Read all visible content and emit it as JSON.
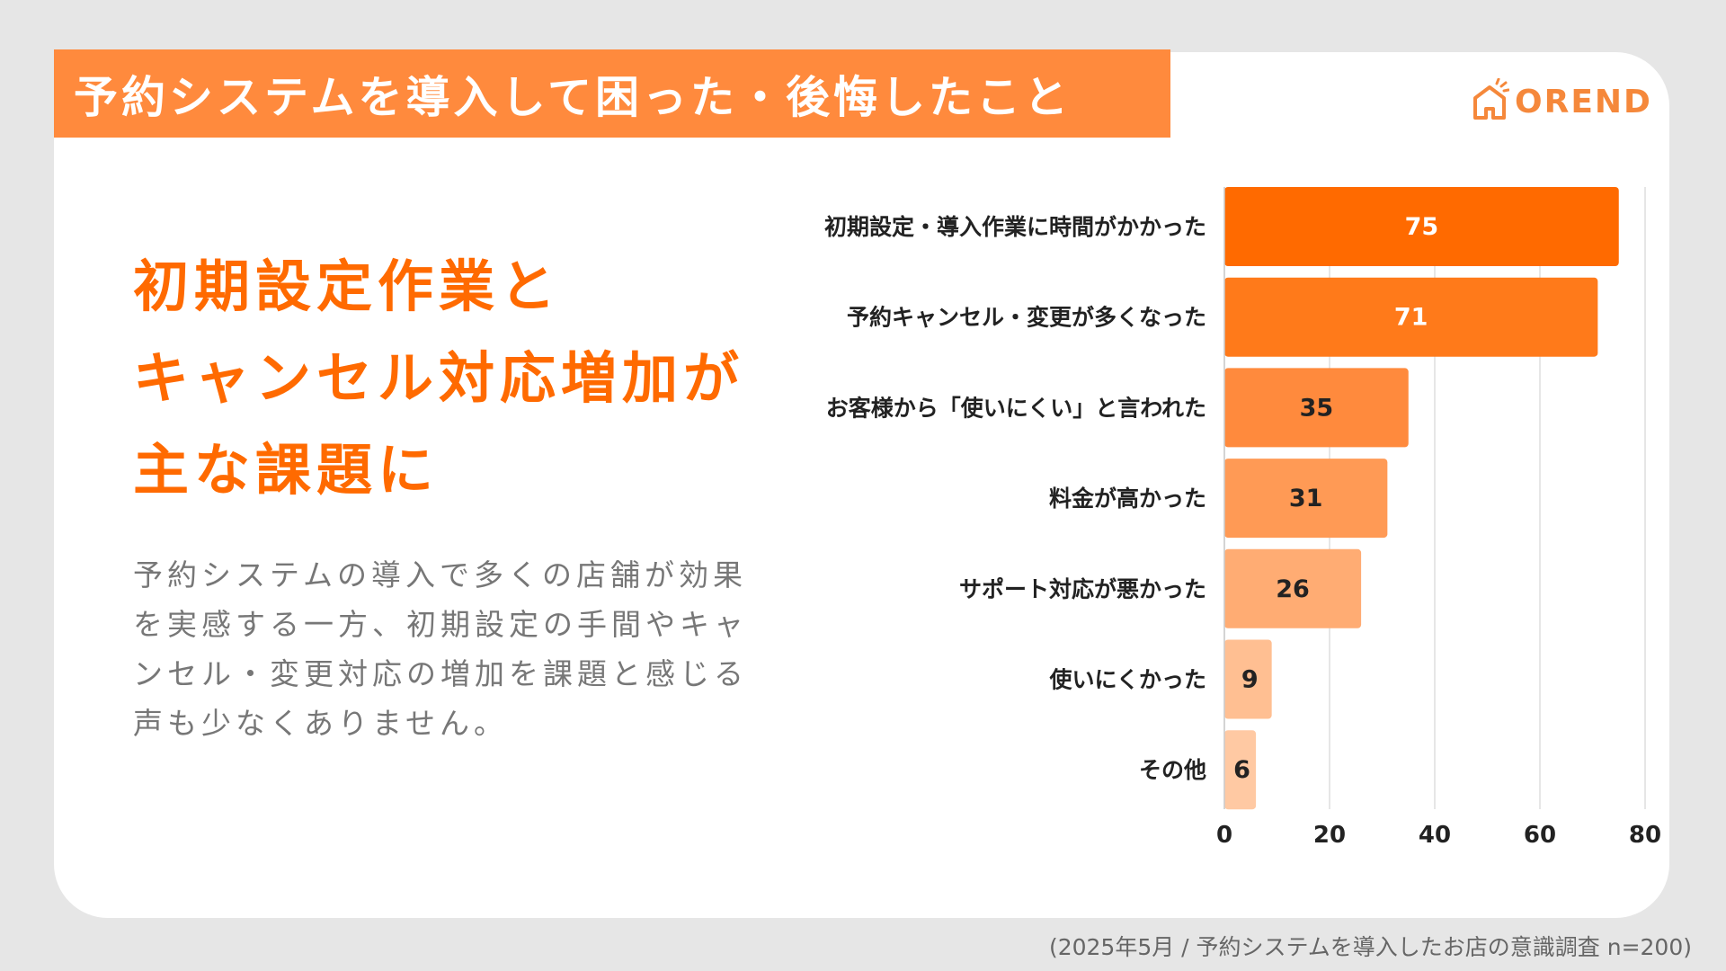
{
  "header": {
    "title": "予約システムを導入して困った・後悔したこと"
  },
  "logo": {
    "text": "OREND",
    "icon": "house-logo-icon",
    "color": "#f5883b"
  },
  "headline": {
    "lines": [
      "初期設定作業と",
      "キャンセル対応増加が",
      "主な課題に"
    ],
    "color": "#ff6a00"
  },
  "body": {
    "text": "予約システムの導入で多くの店舗が効果を実感する一方、初期設定の手間やキャンセル・変更対応の増加を課題と感じる声も少なくありません。"
  },
  "footnote": "(2025年5月 / 予約システムを導入したお店の意識調査 n=200)",
  "chart_data": {
    "type": "bar",
    "orientation": "horizontal",
    "title": "予約システムを導入して困った・後悔したこと",
    "categories": [
      "初期設定・導入作業に時間がかかった",
      "予約キャンセル・変更が多くなった",
      "お客様から「使いにくい」と言われた",
      "料金が高かった",
      "サポート対応が悪かった",
      "使いにくかった",
      "その他"
    ],
    "values": [
      75,
      71,
      35,
      31,
      26,
      9,
      6
    ],
    "colors": [
      "#ff6a00",
      "#ff7a1a",
      "#ff8a3d",
      "#ff9a55",
      "#ffac73",
      "#ffbf92",
      "#ffc9a3"
    ],
    "label_colors": [
      "#ffffff",
      "#ffffff",
      "#222222",
      "#222222",
      "#222222",
      "#222222",
      "#222222"
    ],
    "xlim": [
      0,
      80
    ],
    "xticks": [
      0,
      20,
      40,
      60,
      80
    ],
    "grid": true
  }
}
